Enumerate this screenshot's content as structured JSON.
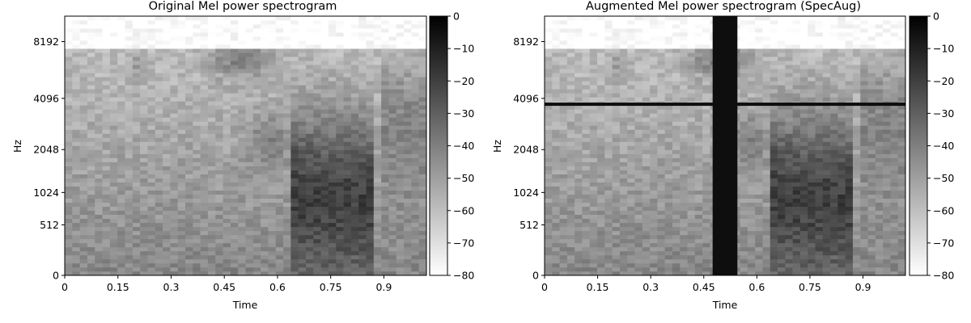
{
  "chart_data": [
    {
      "type": "heatmap",
      "title": "Original Mel power spectrogram",
      "xlabel": "Time",
      "ylabel": "Hz",
      "xlim": [
        0,
        1.02
      ],
      "y_scale": "mel",
      "x_ticks": [
        "0",
        "0.15",
        "0.3",
        "0.45",
        "0.6",
        "0.75",
        "0.9"
      ],
      "y_ticks": [
        "0",
        "512",
        "1024",
        "2048",
        "4096",
        "8192"
      ],
      "colormap": "gray_r",
      "colorbar": {
        "range": [
          -80,
          0
        ],
        "ticks": [
          "0",
          "−10",
          "−20",
          "−30",
          "−40",
          "−50",
          "−60",
          "−70",
          "−80"
        ]
      },
      "masks": []
    },
    {
      "type": "heatmap",
      "title": "Augmented Mel power spectrogram (SpecAug)",
      "xlabel": "Time",
      "ylabel": "Hz",
      "xlim": [
        0,
        1.02
      ],
      "y_scale": "mel",
      "x_ticks": [
        "0",
        "0.15",
        "0.3",
        "0.45",
        "0.6",
        "0.75",
        "0.9"
      ],
      "y_ticks": [
        "0",
        "512",
        "1024",
        "2048",
        "4096",
        "8192"
      ],
      "colormap": "gray_r",
      "colorbar": {
        "range": [
          -80,
          0
        ],
        "ticks": [
          "0",
          "−10",
          "−20",
          "−30",
          "−40",
          "−50",
          "−60",
          "−70",
          "−80"
        ]
      },
      "masks": [
        {
          "kind": "time",
          "from": 0.475,
          "to": 0.545
        },
        {
          "kind": "frequency",
          "from_hz": 3750,
          "to_hz": 3880
        }
      ]
    }
  ]
}
